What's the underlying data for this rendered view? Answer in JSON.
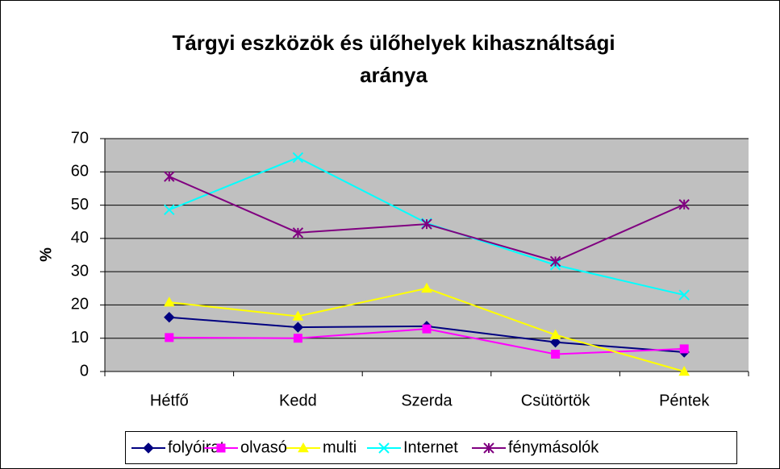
{
  "chart_data": {
    "type": "line",
    "title": [
      "Tárgyi eszközök és ülőhelyek kihasználtsági",
      "aránya"
    ],
    "y_label": "%",
    "categories": [
      "Hétfő",
      "Kedd",
      "Szerda",
      "Csütörtök",
      "Péntek"
    ],
    "series": [
      {
        "name": "folyóirat",
        "color": "#000080",
        "marker": "diamond",
        "values": [
          16.3,
          13.3,
          13.6,
          8.8,
          5.8
        ]
      },
      {
        "name": "olvasó",
        "color": "#ff00ff",
        "marker": "square",
        "values": [
          10.2,
          10,
          12.8,
          5.2,
          6.8
        ]
      },
      {
        "name": "multi",
        "color": "#ffff00",
        "marker": "triangle",
        "values": [
          20.8,
          16.6,
          25,
          11,
          0
        ]
      },
      {
        "name": "Internet",
        "color": "#00ffff",
        "marker": "x",
        "values": [
          48.6,
          64.3,
          44.6,
          32,
          23
        ]
      },
      {
        "name": "fénymásolók",
        "color": "#800080",
        "marker": "star",
        "values": [
          58.6,
          41.7,
          44.3,
          33.1,
          50.2
        ]
      }
    ],
    "ylim": [
      0,
      70
    ],
    "yticks": [
      0,
      10,
      20,
      30,
      40,
      50,
      60,
      70
    ],
    "grid": true,
    "legend": "bottom"
  }
}
